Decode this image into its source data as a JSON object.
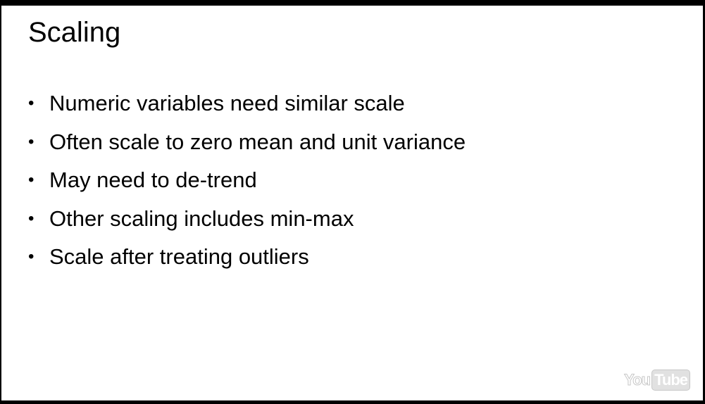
{
  "slide": {
    "title": "Scaling",
    "bullet_symbol": "•",
    "bullets": [
      "Numeric variables need similar scale",
      "Often scale to zero mean and unit variance",
      "May need to de-trend",
      "Other scaling includes min-max",
      "Scale after treating outliers"
    ]
  },
  "watermark": {
    "part1": "You",
    "part2": "Tube"
  },
  "colors": {
    "background": "#ffffff",
    "text": "#000000",
    "frame": "#000000"
  }
}
